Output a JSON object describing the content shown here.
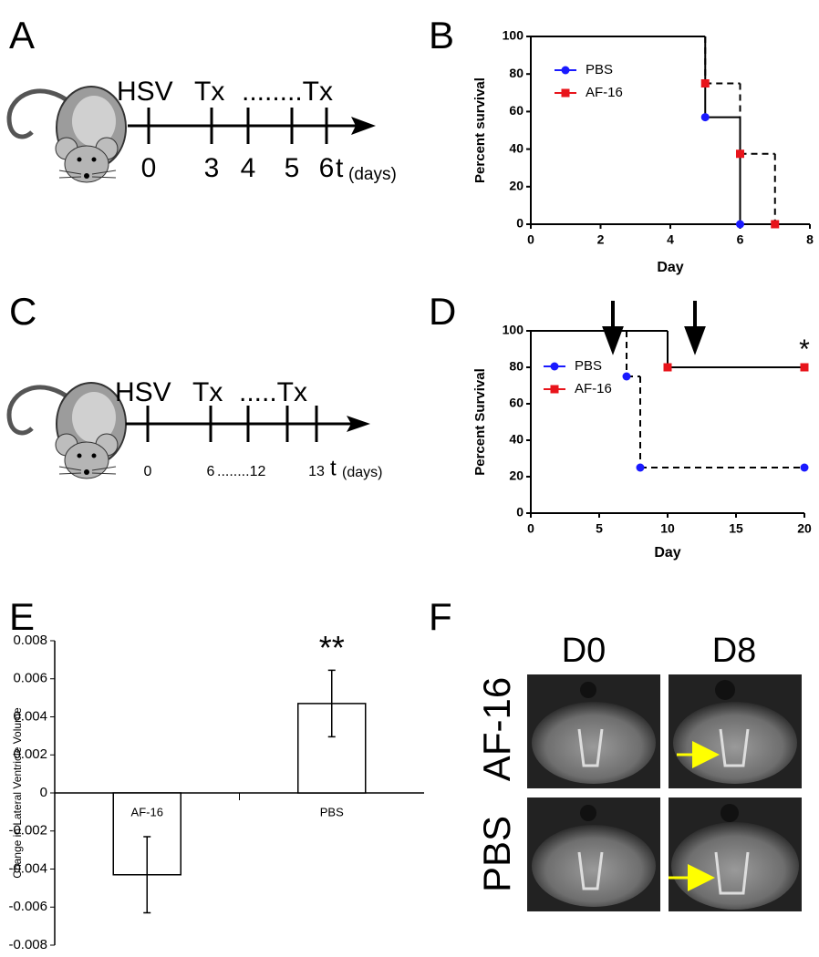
{
  "panel_labels": [
    "A",
    "B",
    "C",
    "D",
    "E",
    "F"
  ],
  "timeline_a": {
    "labels": [
      "HSV",
      "Tx",
      "........Tx"
    ],
    "ticks": [
      "0",
      "3",
      "4",
      "5",
      "6"
    ],
    "axis_label": "t",
    "axis_unit": "(days)"
  },
  "timeline_c": {
    "labels": [
      "HSV",
      "Tx",
      ".....Tx"
    ],
    "ticks": [
      "0",
      "6",
      "........12",
      "13"
    ],
    "axis_label": "t",
    "axis_unit": "(days)"
  },
  "chart_data": [
    {
      "type": "step",
      "x_label": "Day",
      "y_label": "Percent survival",
      "xlim": [
        0,
        8
      ],
      "xticks": [
        0,
        2,
        4,
        6,
        8
      ],
      "ylim": [
        0,
        100
      ],
      "yticks": [
        0,
        20,
        40,
        60,
        80,
        100
      ],
      "legend": "upper-left",
      "series": [
        {
          "name": "PBS",
          "color": "#1a1aff",
          "marker": "circle",
          "dashed": false,
          "x": [
            0,
            5,
            6
          ],
          "values": [
            100,
            57,
            0
          ]
        },
        {
          "name": "AF-16",
          "color": "#e8141b",
          "marker": "square",
          "dashed": true,
          "x": [
            0,
            5,
            6,
            7
          ],
          "values": [
            100,
            75,
            37.5,
            0
          ]
        }
      ]
    },
    {
      "type": "step",
      "x_label": "Day",
      "y_label": "Percent Survival",
      "xlim": [
        0,
        20
      ],
      "xticks": [
        0,
        5,
        10,
        15,
        20
      ],
      "ylim": [
        0,
        100
      ],
      "yticks": [
        0,
        20,
        40,
        60,
        80,
        100
      ],
      "legend": "upper-left",
      "treatment_days": [
        6,
        12
      ],
      "annotation": "*",
      "annotation_series": "AF-16",
      "series": [
        {
          "name": "PBS",
          "color": "#1a1aff",
          "marker": "circle",
          "dashed": true,
          "x": [
            0,
            7,
            8,
            20
          ],
          "values": [
            100,
            75,
            25,
            25
          ]
        },
        {
          "name": "AF-16",
          "color": "#e8141b",
          "marker": "square",
          "dashed": false,
          "x": [
            0,
            10,
            20
          ],
          "values": [
            100,
            80,
            80
          ]
        }
      ]
    },
    {
      "type": "bar",
      "y_label": "Change in Lateral Ventricle Volume",
      "categories": [
        "AF-16",
        "PBS"
      ],
      "values": [
        -0.0043,
        0.0047
      ],
      "errors": [
        0.002,
        0.00175
      ],
      "color": "#ffffff",
      "ylim": [
        -0.008,
        0.008
      ],
      "yticks": [
        -0.008,
        -0.006,
        -0.004,
        -0.002,
        0,
        0.002,
        0.004,
        0.006,
        0.008
      ],
      "annotation": "**",
      "annotation_category": "PBS"
    }
  ],
  "mri": {
    "columns": [
      "D0",
      "D8"
    ],
    "rows": [
      "AF-16",
      "PBS"
    ]
  }
}
